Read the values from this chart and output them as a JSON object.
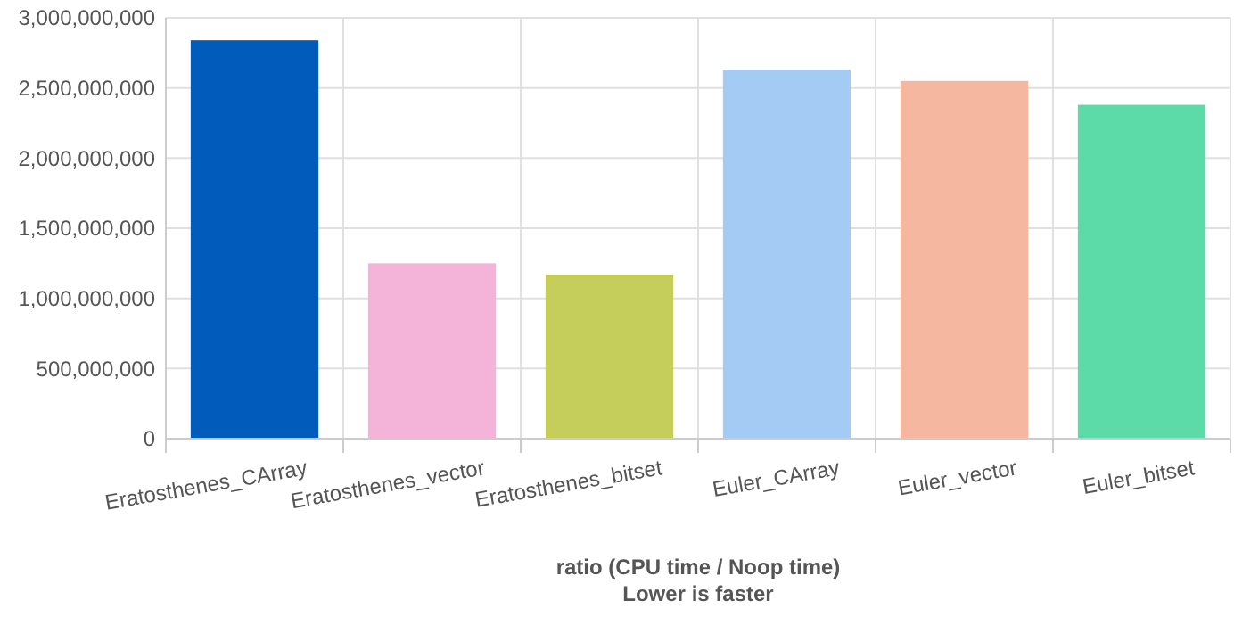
{
  "chart_data": {
    "type": "bar",
    "xlabel": "ratio (CPU time / Noop time)",
    "annotations": [
      "Lower is faster"
    ],
    "categories": [
      "Eratosthenes_CArray",
      "Eratosthenes_vector",
      "Eratosthenes_bitset",
      "Euler_CArray",
      "Euler_vector",
      "Euler_bitset"
    ],
    "values": [
      2840000000,
      1250000000,
      1170000000,
      2630000000,
      2550000000,
      2380000000
    ],
    "colors": [
      "#005bbb",
      "#f4b3d9",
      "#c5ce5b",
      "#a3cbf4",
      "#f5b79f",
      "#5cdba8"
    ],
    "ylim": [
      0,
      3000000000
    ],
    "yticks": [
      {
        "value": 0,
        "label": "0"
      },
      {
        "value": 500000000,
        "label": "500,000,000"
      },
      {
        "value": 1000000000,
        "label": "1,000,000,000"
      },
      {
        "value": 1500000000,
        "label": "1,500,000,000"
      },
      {
        "value": 2000000000,
        "label": "2,000,000,000"
      },
      {
        "value": 2500000000,
        "label": "2,500,000,000"
      },
      {
        "value": 3000000000,
        "label": "3,000,000,000"
      }
    ],
    "grid": true
  }
}
